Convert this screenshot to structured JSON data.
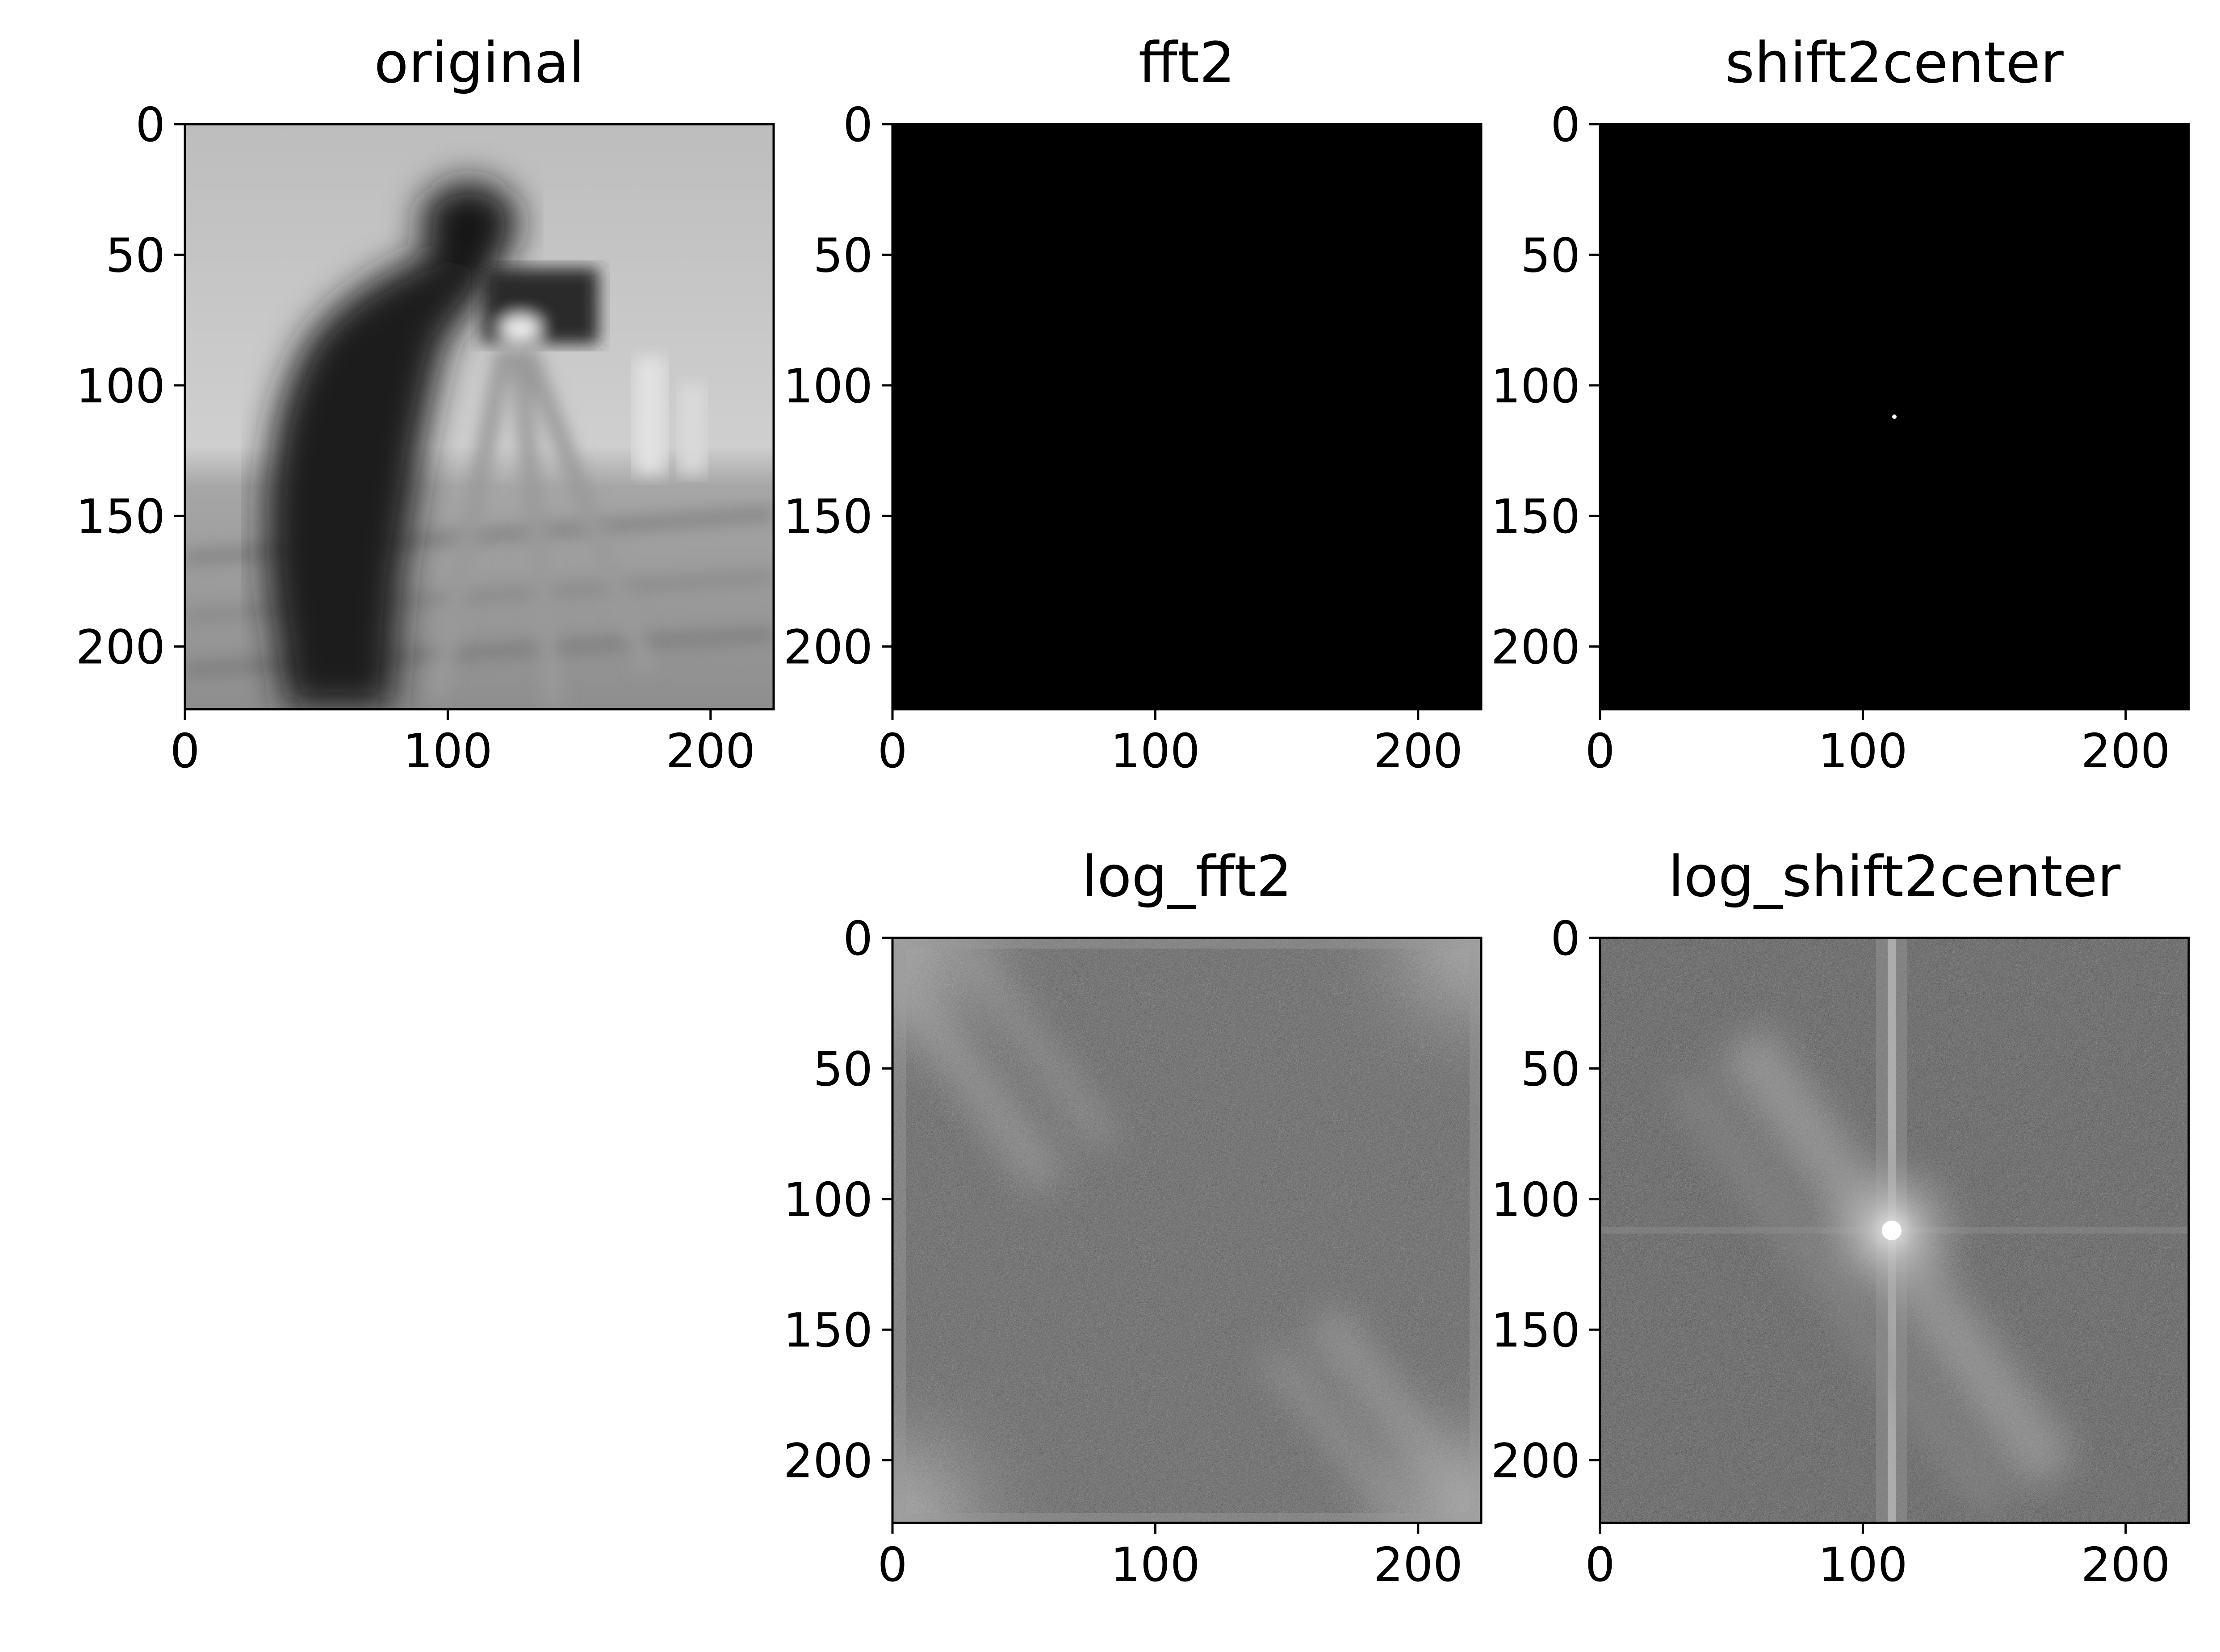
{
  "figure": {
    "background": "#ffffff"
  },
  "chart_data": [
    {
      "type": "image",
      "title": "original",
      "image_description": "blurred grayscale photo of a cameraman with a tripod camera",
      "colormap": "gray",
      "xlim": [
        0,
        224
      ],
      "ylim": [
        224,
        0
      ],
      "xticks": [
        0,
        100,
        200
      ],
      "yticks": [
        0,
        50,
        100,
        150,
        200
      ],
      "xtick_labels": [
        "0",
        "100",
        "200"
      ],
      "ytick_labels": [
        "0",
        "50",
        "100",
        "150",
        "200"
      ]
    },
    {
      "type": "image",
      "title": "fft2",
      "image_description": "almost entirely black magnitude spectrum",
      "colormap": "gray",
      "xlim": [
        0,
        224
      ],
      "ylim": [
        224,
        0
      ],
      "xticks": [
        0,
        100,
        200
      ],
      "yticks": [
        0,
        50,
        100,
        150,
        200
      ],
      "xtick_labels": [
        "0",
        "100",
        "200"
      ],
      "ytick_labels": [
        "0",
        "50",
        "100",
        "150",
        "200"
      ]
    },
    {
      "type": "image",
      "title": "shift2center",
      "image_description": "black spectrum with a single bright dot at the center",
      "colormap": "gray",
      "bright_point": [
        112,
        112
      ],
      "xlim": [
        0,
        224
      ],
      "ylim": [
        224,
        0
      ],
      "xticks": [
        0,
        100,
        200
      ],
      "yticks": [
        0,
        50,
        100,
        150,
        200
      ],
      "xtick_labels": [
        "0",
        "100",
        "200"
      ],
      "ytick_labels": [
        "0",
        "50",
        "100",
        "150",
        "200"
      ]
    },
    {
      "type": "image",
      "title": "log_fft2",
      "image_description": "noisy grey log spectrum, brighter corners, diagonal streaks top-left and bottom-right",
      "colormap": "gray",
      "xlim": [
        0,
        224
      ],
      "ylim": [
        224,
        0
      ],
      "xticks": [
        0,
        100,
        200
      ],
      "yticks": [
        0,
        50,
        100,
        150,
        200
      ],
      "xtick_labels": [
        "0",
        "100",
        "200"
      ],
      "ytick_labels": [
        "0",
        "50",
        "100",
        "150",
        "200"
      ]
    },
    {
      "type": "image",
      "title": "log_shift2center",
      "image_description": "centered log spectrum with bright cross through the center and a diagonal band",
      "colormap": "gray",
      "xlim": [
        0,
        224
      ],
      "ylim": [
        224,
        0
      ],
      "xticks": [
        0,
        100,
        200
      ],
      "yticks": [
        0,
        50,
        100,
        150,
        200
      ],
      "xtick_labels": [
        "0",
        "100",
        "200"
      ],
      "ytick_labels": [
        "0",
        "50",
        "100",
        "150",
        "200"
      ]
    }
  ]
}
